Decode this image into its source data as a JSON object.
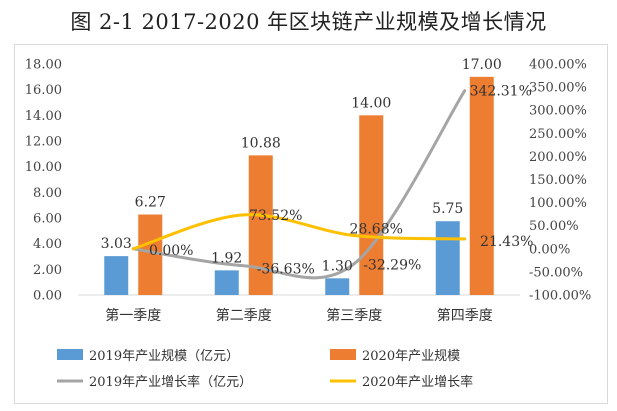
{
  "title": "图 2-1   2017-2020 年区块链产业规模及增长情况",
  "chart_data": {
    "type": "bar",
    "categories": [
      "第一季度",
      "第二季度",
      "第三季度",
      "第四季度"
    ],
    "series": [
      {
        "name": "2019年产业规模（亿元）",
        "kind": "bar",
        "axis": "left",
        "values": [
          3.03,
          1.92,
          1.3,
          5.75
        ],
        "labels": [
          "3.03",
          "1.92",
          "1.30",
          "5.75"
        ],
        "color": "#5b9bd5"
      },
      {
        "name": "2020年产业规模",
        "kind": "bar",
        "axis": "left",
        "values": [
          6.27,
          10.88,
          14.0,
          17.0
        ],
        "labels": [
          "6.27",
          "10.88",
          "14.00",
          "17.00"
        ],
        "color": "#ed7d31"
      },
      {
        "name": "2019年产业增长率（亿元）",
        "kind": "line",
        "axis": "right",
        "values": [
          0.0,
          -36.63,
          -32.29,
          342.31
        ],
        "labels": [
          "0.00%",
          "-36.63%",
          "-32.29%",
          "342.31%"
        ],
        "color": "#a5a5a5"
      },
      {
        "name": "2020年产业增长率",
        "kind": "line",
        "axis": "right",
        "values": [
          0.0,
          73.52,
          28.68,
          21.43
        ],
        "labels": [
          "",
          "73.52%",
          "28.68%",
          "21.43%"
        ],
        "color": "#ffc000"
      }
    ],
    "y_left": {
      "ylim": [
        0,
        18
      ],
      "ticks": [
        "0.00",
        "2.00",
        "4.00",
        "6.00",
        "8.00",
        "10.00",
        "12.00",
        "14.00",
        "16.00",
        "18.00"
      ]
    },
    "y_right": {
      "ylim": [
        -100,
        400
      ],
      "ticks": [
        "-100.00%",
        "-50.00%",
        "0.00%",
        "50.00%",
        "100.00%",
        "150.00%",
        "200.00%",
        "250.00%",
        "300.00%",
        "350.00%",
        "400.00%"
      ]
    },
    "legend_position": "bottom",
    "grid": false
  }
}
